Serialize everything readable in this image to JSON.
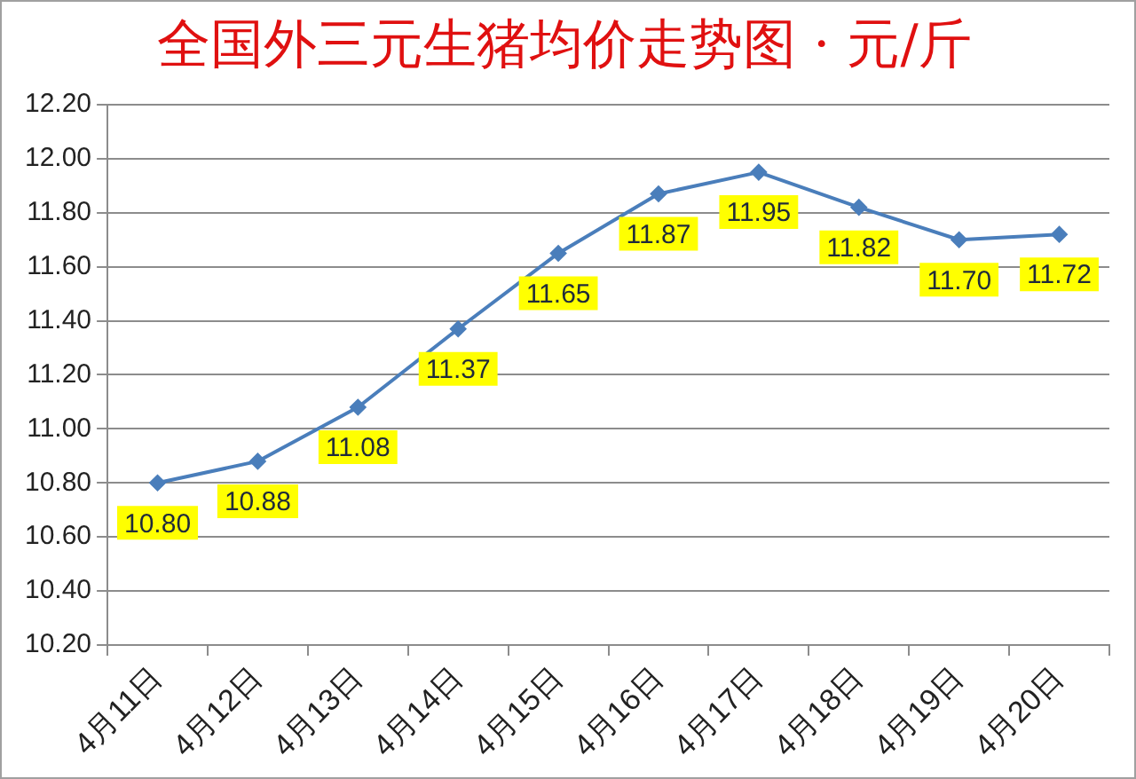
{
  "chart_data": {
    "type": "line",
    "title": "全国外三元生猪均价走势图 · 元/斤",
    "categories": [
      "4月11日",
      "4月12日",
      "4月13日",
      "4月14日",
      "4月15日",
      "4月16日",
      "4月17日",
      "4月18日",
      "4月19日",
      "4月20日"
    ],
    "series": [
      {
        "color": "#4a7ebb",
        "values": [
          10.8,
          10.88,
          11.08,
          11.37,
          11.65,
          11.87,
          11.95,
          11.82,
          11.7,
          11.72
        ],
        "value_labels": [
          "10.80",
          "10.88",
          "11.08",
          "11.37",
          "11.65",
          "11.87",
          "11.95",
          "11.82",
          "11.70",
          "11.72"
        ]
      }
    ],
    "ylim": [
      10.2,
      12.2
    ],
    "yticks": [
      {
        "value": 10.2,
        "label": "10.20"
      },
      {
        "value": 10.4,
        "label": "10.40"
      },
      {
        "value": 10.6,
        "label": "10.60"
      },
      {
        "value": 10.8,
        "label": "10.80"
      },
      {
        "value": 11.0,
        "label": "11.00"
      },
      {
        "value": 11.2,
        "label": "11.20"
      },
      {
        "value": 11.4,
        "label": "11.40"
      },
      {
        "value": 11.6,
        "label": "11.60"
      },
      {
        "value": 11.8,
        "label": "11.80"
      },
      {
        "value": 12.0,
        "label": "12.00"
      },
      {
        "value": 12.2,
        "label": "12.20"
      }
    ],
    "grid": "y",
    "marker": "diamond",
    "line_style": "solid"
  }
}
